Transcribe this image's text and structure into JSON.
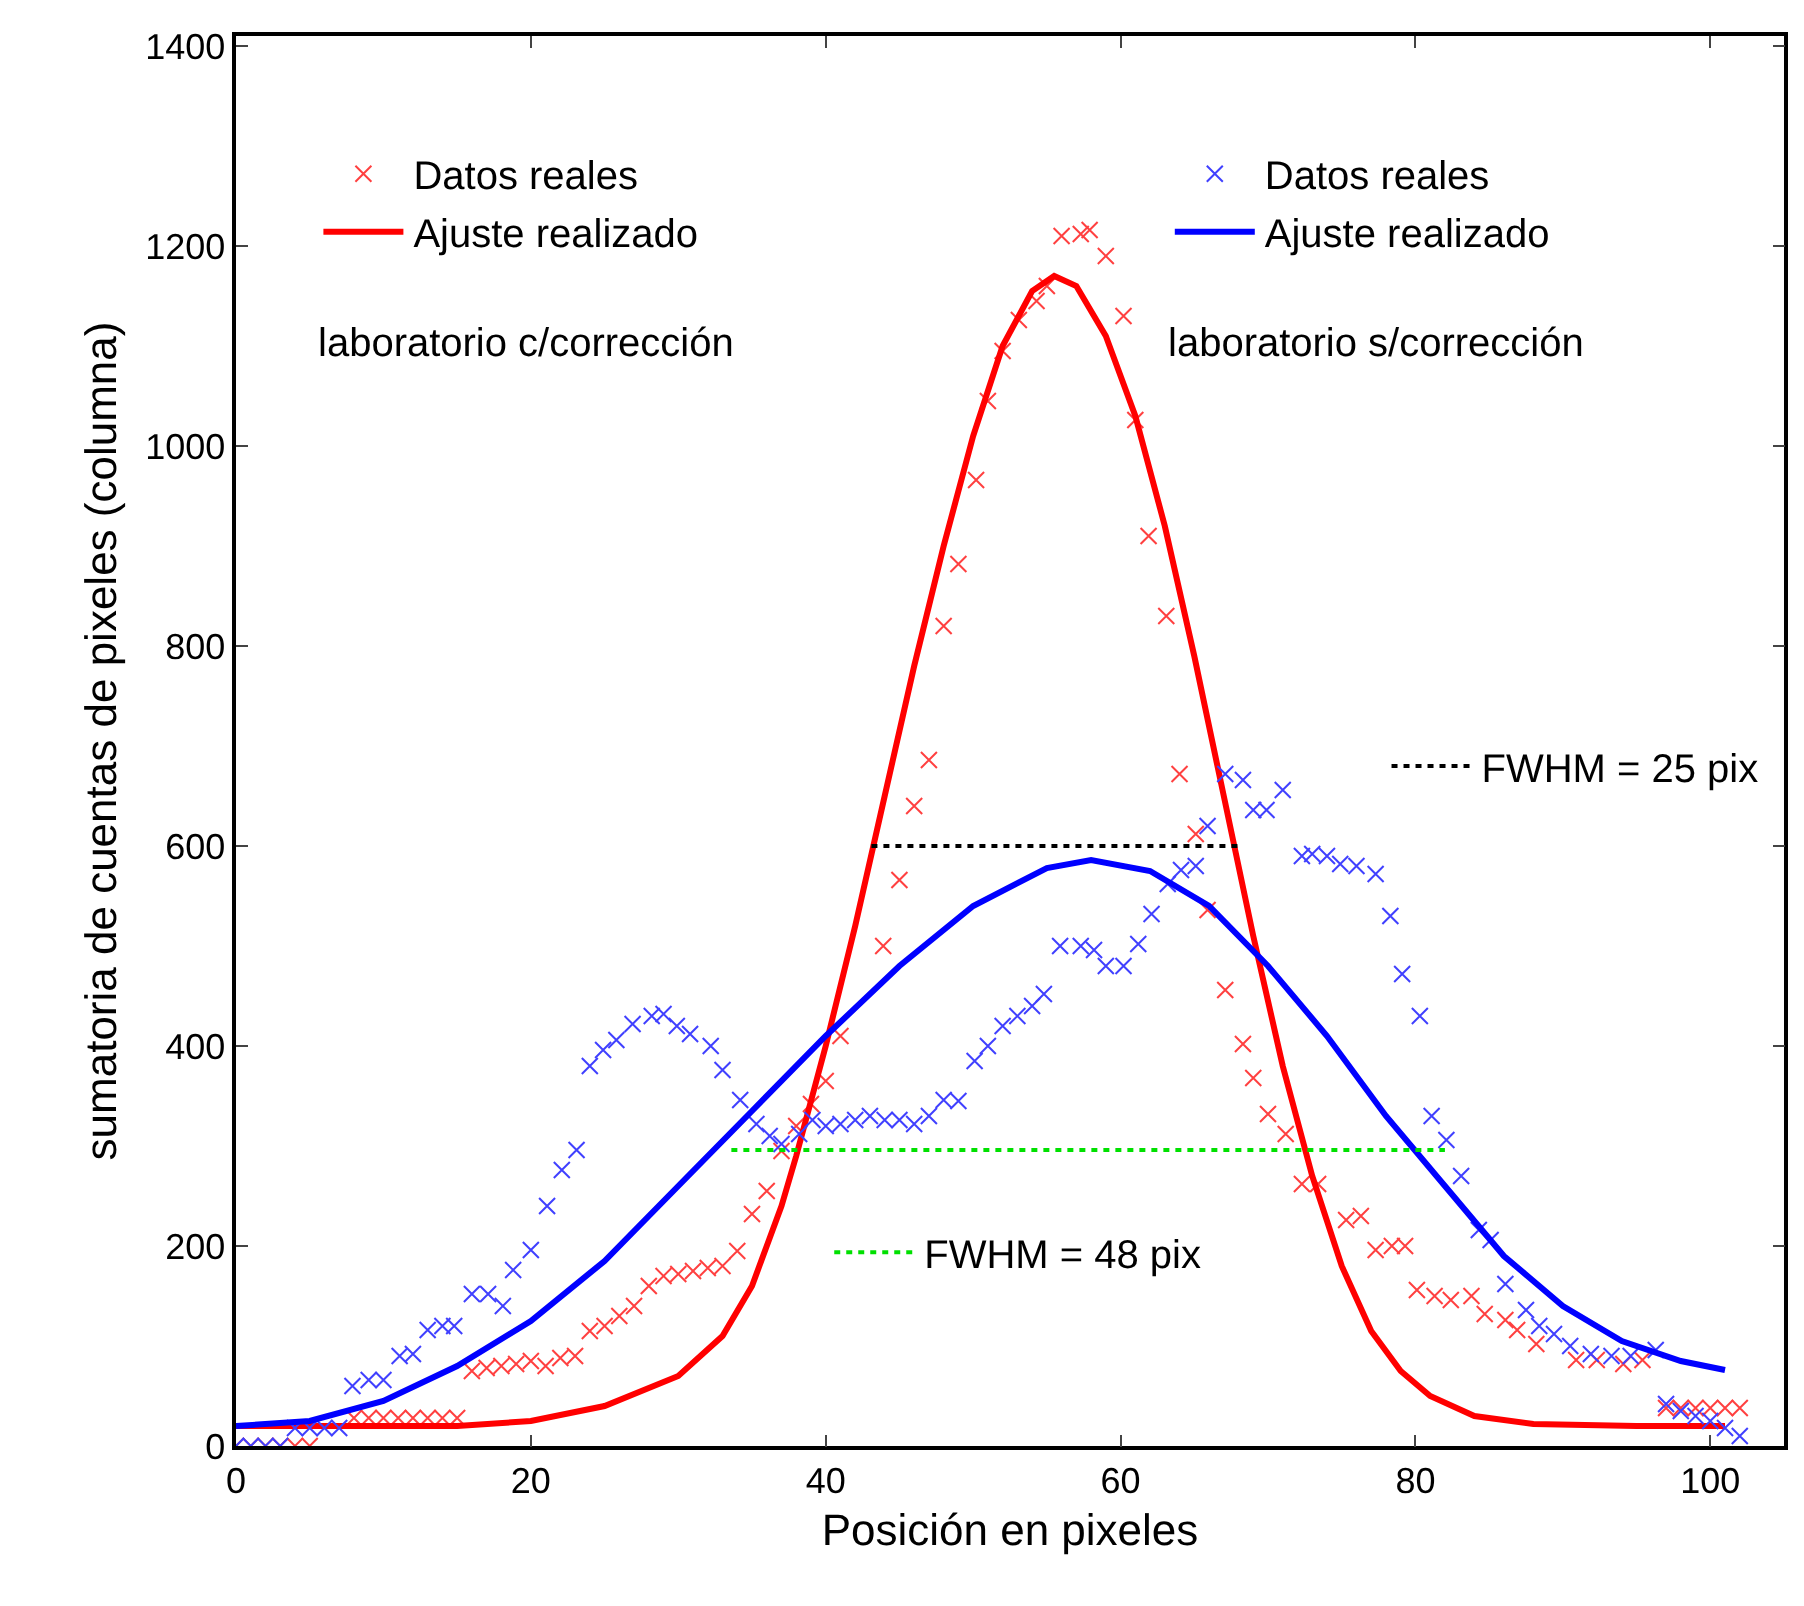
{
  "chart_data": {
    "type": "scatter",
    "xlabel": "Posición en pixeles",
    "ylabel": "sumatoria de cuentas de pixeles (columna)",
    "xlim": [
      0,
      105
    ],
    "ylim": [
      0,
      1410
    ],
    "xticks": [
      0,
      20,
      40,
      60,
      80,
      100
    ],
    "yticks": [
      0,
      200,
      400,
      600,
      800,
      1000,
      1200,
      1400
    ],
    "grid": false,
    "legend": "top",
    "annotations": [
      "laboratorio c/corrección",
      "laboratorio s/corrección"
    ],
    "series": [
      {
        "name": "Datos reales",
        "marker": "cross",
        "color": "#ff4040",
        "x": [
          0,
          1,
          2,
          3,
          4,
          5,
          8,
          9,
          10,
          11,
          12,
          13,
          14,
          15,
          16,
          17,
          18,
          19,
          20,
          21,
          22,
          23,
          24,
          25,
          26,
          27,
          28,
          29,
          30,
          31,
          32,
          33,
          34,
          35,
          36,
          37,
          38,
          39,
          40,
          41,
          43.9,
          45,
          46,
          47,
          48,
          49,
          50.2,
          51,
          52,
          53.1,
          54.3,
          55,
          56,
          57.3,
          57.9,
          59,
          60.2,
          61,
          61.9,
          63.1,
          64,
          65.1,
          65.9,
          67.1,
          68.3,
          69,
          70,
          71.2,
          72.3,
          73.4,
          75.3,
          76.3,
          77.3,
          78.4,
          79.3,
          80.1,
          81.3,
          82.4,
          83.8,
          84.7,
          86.1,
          86.9,
          88.2,
          90.9,
          92.3,
          94.1,
          95.4,
          97,
          98,
          99,
          100,
          101,
          102
        ],
        "values": [
          0,
          0,
          0,
          0,
          0,
          0,
          28,
          28,
          28,
          28,
          28,
          28,
          28,
          28,
          75,
          78,
          80,
          82,
          85,
          80,
          88,
          90,
          115,
          120,
          130,
          140,
          160,
          170,
          172,
          175,
          178,
          180,
          195,
          232,
          255,
          295,
          320,
          342,
          365,
          410,
          500,
          566,
          640,
          686,
          820,
          882,
          966,
          1045,
          1095,
          1126,
          1145,
          1160,
          1210,
          1212,
          1216,
          1190,
          1130,
          1026,
          910,
          830,
          672,
          612,
          536,
          456,
          402,
          368,
          332,
          312,
          262,
          262,
          226,
          230,
          196,
          200,
          200,
          156,
          150,
          146,
          150,
          132,
          126,
          116,
          102,
          86,
          86,
          82,
          86,
          38,
          38,
          38,
          38,
          38,
          38
        ]
      },
      {
        "name": "Ajuste realizado",
        "type": "line",
        "marker": "none",
        "color": "#ff0000",
        "x": [
          0,
          15,
          20,
          25,
          30,
          33,
          35,
          37,
          38,
          40,
          42,
          44,
          46,
          48,
          50,
          52,
          54,
          55.5,
          57,
          59,
          61,
          63,
          65,
          67,
          69,
          71,
          73,
          75,
          77,
          79,
          81,
          84,
          88,
          95,
          101
        ],
        "values": [
          20,
          20,
          25,
          40,
          70,
          110,
          160,
          240,
          290,
          400,
          520,
          650,
          780,
          900,
          1010,
          1100,
          1155,
          1170,
          1160,
          1110,
          1030,
          920,
          790,
          650,
          510,
          380,
          270,
          180,
          115,
          75,
          50,
          30,
          22,
          20,
          20
        ]
      },
      {
        "name": "Datos reales",
        "marker": "cross",
        "color": "#4040ff",
        "x": [
          0,
          1,
          2,
          3,
          4,
          5,
          6,
          7,
          7.9,
          9,
          10,
          11.1,
          12,
          13,
          14,
          14.8,
          16,
          17.1,
          18.1,
          18.8,
          20,
          21.1,
          22.1,
          23.1,
          24,
          24.9,
          25.8,
          26.9,
          28.2,
          29,
          29.9,
          30.8,
          32.2,
          33,
          34.2,
          35.3,
          36.2,
          37,
          38.2,
          39.1,
          40,
          41,
          42,
          43,
          44,
          45,
          46,
          47,
          48,
          49,
          50.1,
          51,
          52,
          53,
          54,
          54.8,
          55.9,
          57.3,
          58.2,
          59,
          60.2,
          61.2,
          62.1,
          63.2,
          64.1,
          65.1,
          65.9,
          67.1,
          68.3,
          69,
          69.9,
          71,
          72.3,
          73,
          74,
          74.9,
          76,
          77.3,
          78.3,
          79.1,
          80.3,
          81.1,
          82.1,
          83.1,
          84.3,
          85.1,
          86.1,
          87.5,
          88.4,
          89.4,
          90.5,
          91.9,
          93.3,
          94.6,
          96.3,
          97,
          98,
          99,
          100,
          101,
          102
        ],
        "values": [
          0,
          0,
          0,
          0,
          18,
          18,
          18,
          18,
          60,
          66,
          66,
          90,
          92,
          116,
          120,
          120,
          152,
          152,
          140,
          176,
          196,
          240,
          276,
          296,
          380,
          396,
          406,
          422,
          430,
          432,
          420,
          412,
          400,
          376,
          346,
          322,
          310,
          302,
          312,
          326,
          320,
          322,
          326,
          330,
          326,
          326,
          322,
          330,
          346,
          345,
          385,
          400,
          420,
          430,
          440,
          452,
          500,
          500,
          496,
          480,
          480,
          502,
          532,
          562,
          576,
          580,
          620,
          672,
          666,
          636,
          636,
          656,
          590,
          592,
          590,
          582,
          580,
          572,
          530,
          472,
          430,
          330,
          306,
          270,
          216,
          206,
          162,
          136,
          120,
          112,
          100,
          92,
          90,
          90,
          96,
          42,
          35,
          30,
          25,
          18,
          10
        ]
      },
      {
        "name": "Ajuste realizado",
        "type": "line",
        "marker": "none",
        "color": "#0000ff",
        "x": [
          0,
          5,
          10,
          15,
          20,
          25,
          30,
          35,
          40,
          45,
          50,
          55,
          58,
          62,
          66,
          70,
          74,
          78,
          82,
          86,
          90,
          94,
          98,
          101
        ],
        "values": [
          20,
          25,
          45,
          80,
          125,
          185,
          260,
          335,
          410,
          480,
          540,
          578,
          586,
          575,
          540,
          480,
          410,
          330,
          260,
          190,
          140,
          105,
          85,
          76
        ]
      },
      {
        "name": "FWHM = 25 pix",
        "type": "line",
        "marker": "none",
        "line_style": "dotted",
        "color": "#000000",
        "x": [
          43.1,
          68.2
        ],
        "values": [
          600,
          600
        ]
      },
      {
        "name": "FWHM = 48 pix",
        "type": "line",
        "marker": "none",
        "line_style": "dotted",
        "color": "#00e000",
        "x": [
          33.6,
          82
        ],
        "values": [
          296,
          296
        ]
      }
    ]
  }
}
